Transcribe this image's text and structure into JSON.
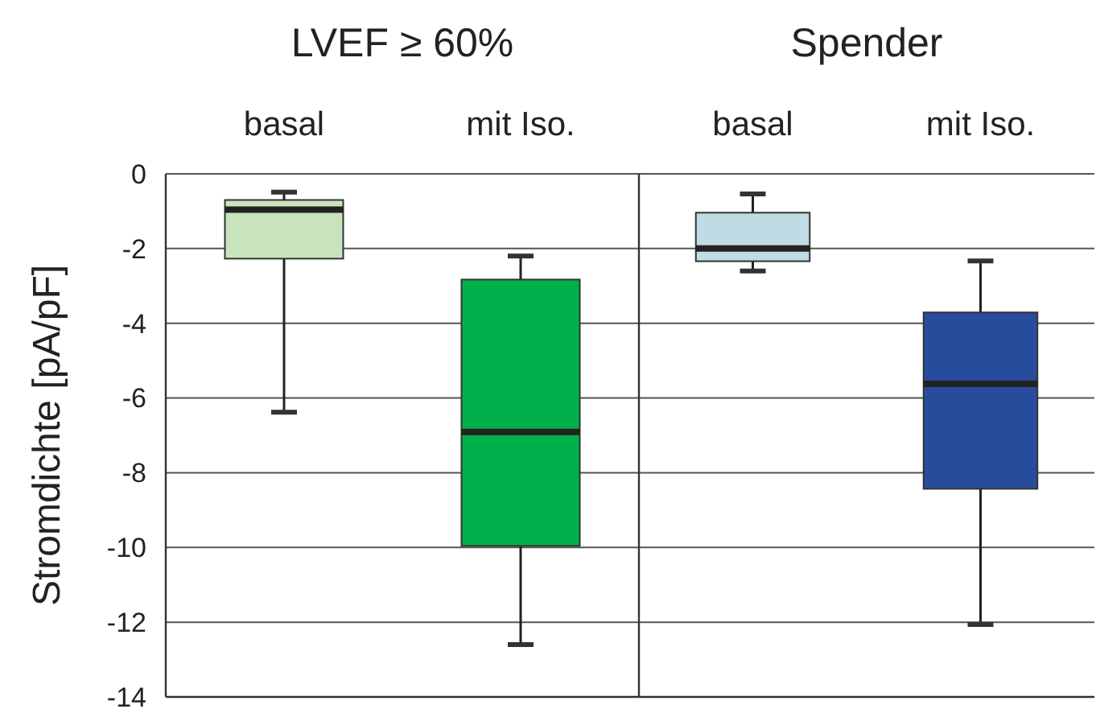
{
  "chart_data": [
    {
      "type": "box",
      "title": "LVEF ≥ 60%",
      "ylabel": "Stromdichte [pA/pF]",
      "categories": [
        "basal",
        "mit Iso."
      ],
      "colors": [
        "#c9e4bc",
        "#00b04a"
      ],
      "boxes": [
        {
          "low": -6.38,
          "q1": -2.27,
          "median": -0.96,
          "q3": -0.7,
          "high": -0.49
        },
        {
          "low": -12.6,
          "q1": -9.96,
          "median": -6.91,
          "q3": -2.83,
          "high": -2.2
        }
      ],
      "ylim": [
        -14,
        0
      ],
      "yticks": [
        -14,
        -12,
        -10,
        -8,
        -6,
        -4,
        -2,
        0
      ],
      "grid": "y"
    },
    {
      "type": "box",
      "title": "Spender",
      "categories": [
        "basal",
        "mit Iso."
      ],
      "colors": [
        "#c0dbe3",
        "#284c9c"
      ],
      "boxes": [
        {
          "low": -2.6,
          "q1": -2.34,
          "median": -2.0,
          "q3": -1.04,
          "high": -0.54
        },
        {
          "low": -12.06,
          "q1": -8.43,
          "median": -5.62,
          "q3": -3.71,
          "high": -2.33
        }
      ],
      "ylim": [
        -14,
        0
      ],
      "yticks": [
        -14,
        -12,
        -10,
        -8,
        -6,
        -4,
        -2,
        0
      ],
      "grid": "y",
      "tick_labels": "x"
    }
  ]
}
